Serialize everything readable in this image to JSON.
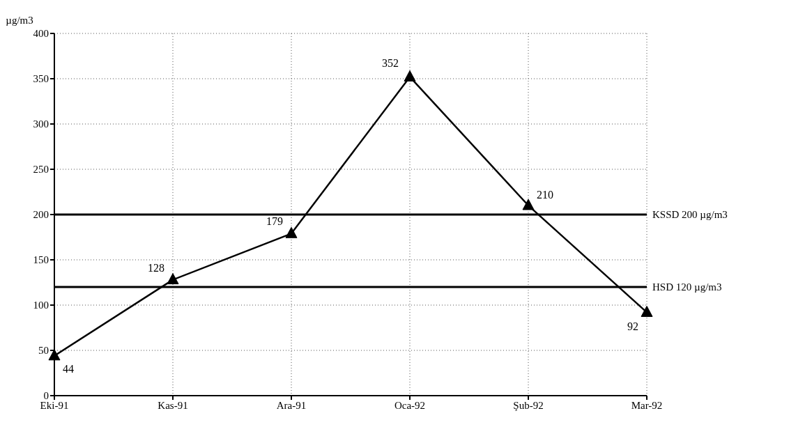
{
  "chart_data": {
    "type": "line",
    "ylabel": "µg/m3",
    "categories": [
      "Eki-91",
      "Kas-91",
      "Ara-91",
      "Oca-92",
      "Şub-92",
      "Mar-92"
    ],
    "series": [
      {
        "color": "#000000",
        "values": [
          44,
          128,
          179,
          352,
          210,
          92
        ]
      }
    ],
    "ylim": [
      0,
      400
    ],
    "yticks": [
      0,
      50,
      100,
      150,
      200,
      250,
      300,
      350,
      400
    ],
    "ref_lines": [
      {
        "axis": "y",
        "value": 200,
        "label": "KSSD 200 µg/m3",
        "color": "#000000"
      },
      {
        "axis": "y",
        "value": 120,
        "label": "HSD 120 µg/m3",
        "color": "#000000"
      }
    ],
    "grid": true,
    "marker": "triangle",
    "line_style": "solid",
    "data_labels": true,
    "legend": false
  }
}
